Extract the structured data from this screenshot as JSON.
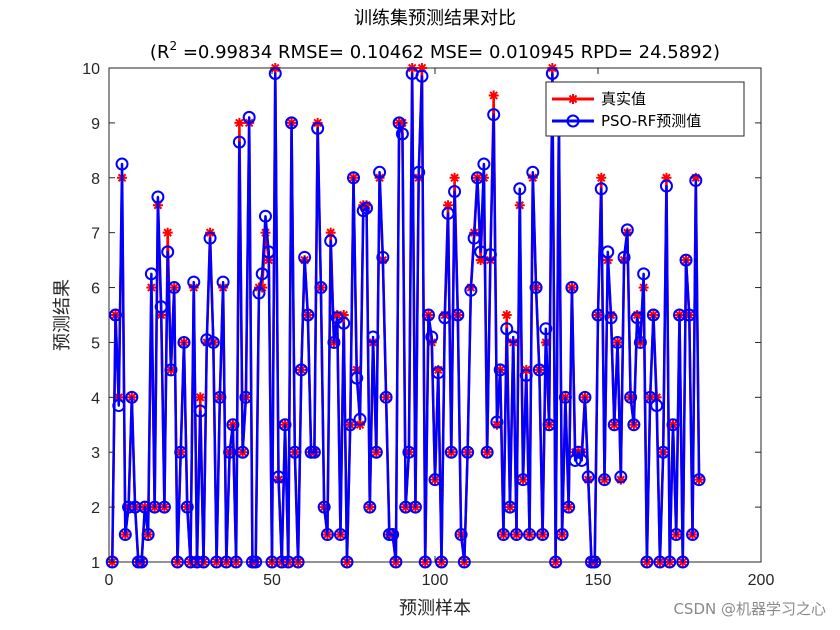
{
  "watermark": "CSDN @机器学习之心",
  "chart_data": {
    "type": "line",
    "title": "训练集预测结果对比",
    "subtitle_prefix": "(R",
    "subtitle_sup": "2",
    "subtitle_rest": " =0.99834 RMSE= 0.10462 MSE= 0.010945 RPD= 24.5892)",
    "xlabel": "预测样本",
    "ylabel": "预测结果",
    "xlim": [
      0,
      200
    ],
    "ylim": [
      1,
      10
    ],
    "xticks": [
      0,
      50,
      100,
      150,
      200
    ],
    "yticks": [
      1,
      2,
      3,
      4,
      5,
      6,
      7,
      8,
      9,
      10
    ],
    "grid": false,
    "legend_position": "top-right",
    "series": [
      {
        "name": "真实值",
        "color": "#ff0000",
        "marker": "asterisk",
        "values": [
          1,
          5.5,
          4,
          8,
          1.5,
          2,
          4,
          2,
          1,
          1,
          2,
          1.5,
          6,
          2,
          7.5,
          5.5,
          2,
          7,
          4.5,
          6,
          1,
          3,
          5,
          2,
          1,
          6,
          1,
          4,
          1,
          5,
          7,
          5,
          1,
          4,
          6,
          1,
          3,
          3.5,
          1,
          9,
          3,
          4,
          9,
          1,
          1,
          6,
          6,
          7,
          6.5,
          1,
          10,
          2.5,
          1,
          3.5,
          1,
          9,
          3,
          1,
          4.5,
          6.5,
          5.5,
          3,
          3,
          9,
          6,
          2,
          1.5,
          7,
          5,
          5.5,
          1.5,
          5.5,
          1,
          3.5,
          8,
          4.5,
          3.5,
          7.5,
          7.5,
          2,
          5,
          3,
          8,
          6.5,
          4,
          1.5,
          1.5,
          1,
          9,
          9,
          2,
          3,
          10,
          2,
          8,
          10,
          1,
          5.5,
          5,
          2.5,
          4.5,
          1,
          5.5,
          7.5,
          3,
          8,
          5.5,
          1.5,
          1,
          3,
          6,
          7,
          8,
          6.5,
          8,
          3,
          6.5,
          9.5,
          3.5,
          4.5,
          1.5,
          5.5,
          2,
          5,
          1.5,
          7.5,
          2.5,
          4.5,
          1.5,
          8,
          6,
          4.5,
          1.5,
          5,
          3.5,
          10,
          1,
          9,
          1.5,
          4,
          2,
          6,
          3,
          3,
          3,
          4,
          2.5,
          1,
          1,
          5.5,
          8,
          2.5,
          6.5,
          5.5,
          3.5,
          5,
          2.5,
          6.5,
          7,
          4,
          3.5,
          5.5,
          5,
          6,
          1,
          4,
          5.5,
          4,
          1,
          3,
          8,
          1,
          3.5,
          1.5,
          5.5,
          1,
          6.5,
          5.5,
          1.5,
          8,
          2.5
        ]
      },
      {
        "name": "PSO-RF预测值",
        "color": "#0000ff",
        "marker": "circle",
        "values": [
          1,
          5.5,
          3.85,
          8.25,
          1.5,
          2,
          4,
          2,
          1,
          1,
          2,
          1.5,
          6.25,
          2,
          7.65,
          5.65,
          2,
          6.65,
          4.5,
          6,
          1,
          3,
          5,
          2,
          1,
          6.1,
          1,
          3.75,
          1,
          5.05,
          6.9,
          5,
          1,
          4,
          6.1,
          1,
          3,
          3.5,
          1,
          8.65,
          3,
          4,
          9.1,
          1,
          1,
          5.9,
          6.25,
          7.3,
          6.65,
          1,
          9.9,
          2.55,
          1,
          3.5,
          1,
          9,
          3,
          1,
          4.5,
          6.55,
          5.5,
          3,
          3,
          8.9,
          6,
          2,
          1.5,
          6.85,
          5,
          5.45,
          1.5,
          5.35,
          1,
          3.5,
          8,
          4.35,
          3.6,
          7.4,
          7.45,
          2,
          5.1,
          3,
          8.1,
          6.55,
          4,
          1.5,
          1.5,
          1,
          9,
          8.8,
          2,
          3,
          9.9,
          2,
          8.1,
          9.85,
          1,
          5.5,
          5.1,
          2.5,
          4.45,
          1,
          5.45,
          7.35,
          3,
          7.75,
          5.5,
          1.5,
          1,
          3,
          5.95,
          6.9,
          8,
          6.65,
          8.25,
          3,
          6.6,
          9.15,
          3.55,
          4.5,
          1.5,
          5.25,
          2,
          5.1,
          1.5,
          7.8,
          2.5,
          4.4,
          1.5,
          8.1,
          6,
          4.5,
          1.5,
          5.25,
          3.5,
          9.9,
          1,
          9.1,
          1.5,
          4,
          2,
          6,
          2.85,
          3,
          2.85,
          4,
          2.55,
          1,
          1,
          5.5,
          7.8,
          2.5,
          6.65,
          5.45,
          3.5,
          5,
          2.55,
          6.55,
          7.05,
          4,
          3.5,
          5.45,
          5,
          6.25,
          1,
          4,
          5.5,
          3.85,
          1,
          3,
          7.85,
          1,
          3.5,
          1.5,
          5.5,
          1,
          6.5,
          5.5,
          1.5,
          7.95,
          2.5
        ]
      }
    ]
  }
}
